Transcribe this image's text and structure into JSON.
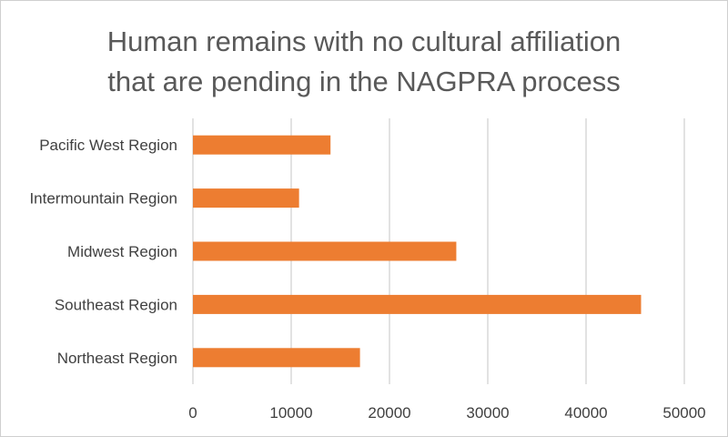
{
  "chart_data": {
    "type": "bar",
    "orientation": "horizontal",
    "title_lines": [
      "Human remains with no cultural affiliation",
      "that are pending in the NAGPRA process"
    ],
    "categories": [
      "Pacific West Region",
      "Intermountain Region",
      "Midwest Region",
      "Southeast Region",
      "Northeast Region"
    ],
    "values": [
      14000,
      10800,
      26800,
      45600,
      17000
    ],
    "xlim": [
      0,
      50000
    ],
    "xticks": [
      "0",
      "10000",
      "20000",
      "30000",
      "40000",
      "50000"
    ],
    "grid": true,
    "bar_color": "#ED7D31",
    "grid_color": "#D9D9D9"
  }
}
